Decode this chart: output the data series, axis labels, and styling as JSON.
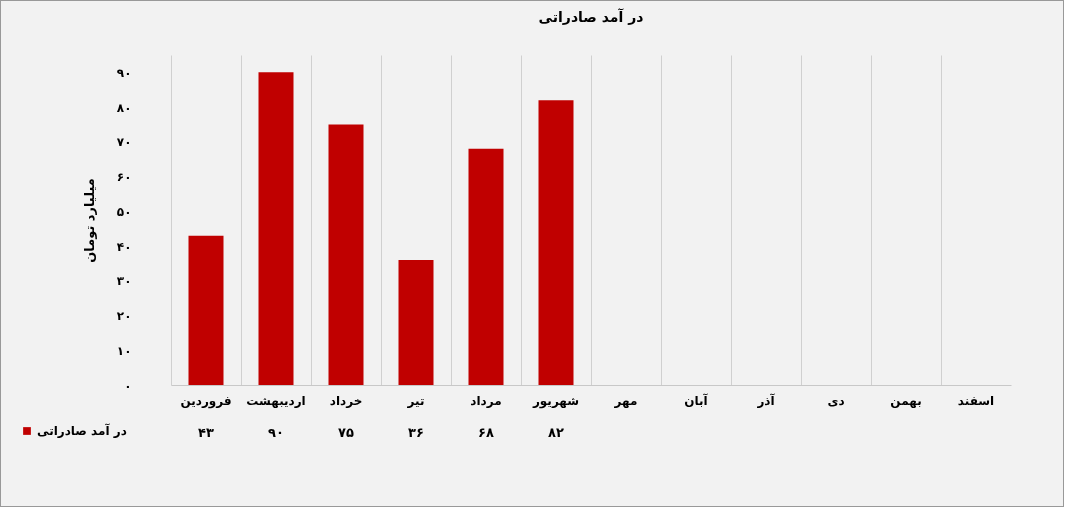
{
  "chart_data": {
    "type": "bar",
    "title": "در آمد صادراتی",
    "ylabel": "میلیارد تومان",
    "categories": [
      "فروردین",
      "اردیبهشت",
      "خرداد",
      "تیر",
      "مرداد",
      "شهریور",
      "مهر",
      "آبان",
      "آذر",
      "دی",
      "بهمن",
      "اسفند"
    ],
    "series": [
      {
        "name": "در آمد صادراتی",
        "color": "#c00000",
        "values": [
          43,
          90,
          75,
          36,
          68,
          82,
          null,
          null,
          null,
          null,
          null,
          null
        ],
        "value_labels": [
          "۴۳",
          "۹۰",
          "۷۵",
          "۳۶",
          "۶۸",
          "۸۲",
          null,
          null,
          null,
          null,
          null,
          null
        ]
      }
    ],
    "ylim": [
      0,
      95
    ],
    "yticks": [
      {
        "value": 0,
        "label": "۰"
      },
      {
        "value": 10,
        "label": "۱۰"
      },
      {
        "value": 20,
        "label": "۲۰"
      },
      {
        "value": 30,
        "label": "۳۰"
      },
      {
        "value": 40,
        "label": "۴۰"
      },
      {
        "value": 50,
        "label": "۵۰"
      },
      {
        "value": 60,
        "label": "۶۰"
      },
      {
        "value": 70,
        "label": "۷۰"
      },
      {
        "value": 80,
        "label": "۸۰"
      },
      {
        "value": 90,
        "label": "۹۰"
      }
    ],
    "grid": "x",
    "legend": "bottom left"
  }
}
